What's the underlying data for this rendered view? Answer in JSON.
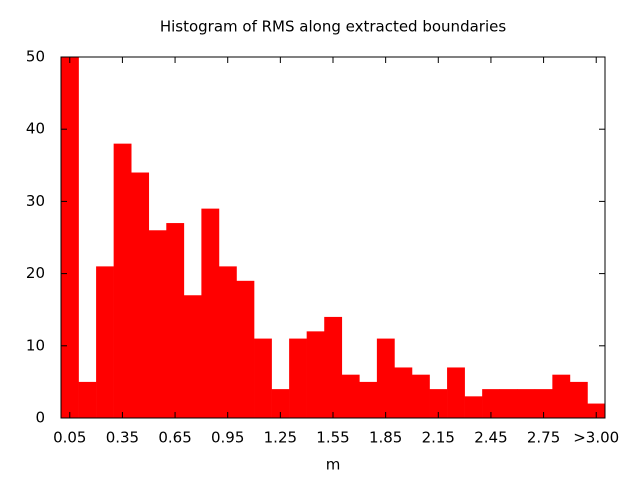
{
  "chart_data": {
    "type": "bar",
    "title": "Histogram of RMS along extracted boundaries",
    "x_label": "m",
    "categories": [
      "0.05",
      null,
      null,
      "0.35",
      null,
      null,
      "0.65",
      null,
      null,
      "0.95",
      null,
      null,
      "1.25",
      null,
      null,
      "1.55",
      null,
      null,
      "1.85",
      null,
      null,
      "2.15",
      null,
      null,
      "2.45",
      null,
      null,
      "2.75",
      null,
      null,
      ">3.00"
    ],
    "values": [
      50,
      5,
      21,
      38,
      34,
      26,
      27,
      17,
      29,
      21,
      19,
      11,
      4,
      11,
      12,
      14,
      6,
      5,
      11,
      7,
      6,
      4,
      7,
      3,
      4,
      4,
      4,
      4,
      6,
      5,
      2
    ],
    "color": "#ff0000",
    "ylim": [
      0,
      50
    ],
    "yticks": [
      0,
      10,
      20,
      30,
      40,
      50
    ],
    "grid": false
  }
}
